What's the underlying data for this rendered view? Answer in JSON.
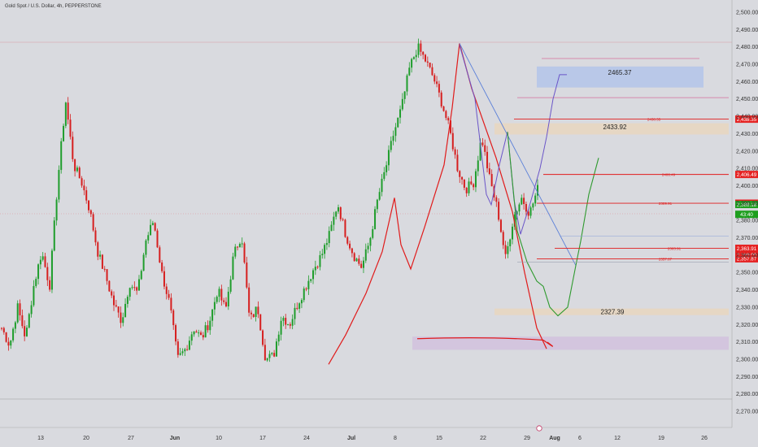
{
  "header": {
    "symbol_title": "Gold Spot / U.S. Dollar, 4h, PEPPERSTONE"
  },
  "colors": {
    "background": "#d9dadf",
    "up": "#1f9d2c",
    "down": "#d61f1f",
    "axis_text": "#333333",
    "price_tag_red": "#e52222",
    "price_tag_green": "#1e9e1e",
    "zone_blue": "#b9c8e8",
    "zone_orange": "#e8d6bf",
    "zone_purple": "#d2c2de",
    "pink_line": "#d7a4be",
    "line_red": "#e01b1b",
    "line_blue": "#5a7fd8",
    "line_purple": "#6a55c8",
    "line_green": "#2f9a2f"
  },
  "chart_data": {
    "type": "candlestick",
    "symbol": "Gold Spot / U.S. Dollar",
    "interval": "4h",
    "source": "PEPPERSTONE",
    "x_tick_labels": [
      "13",
      "20",
      "27",
      "Jun",
      "10",
      "17",
      "24",
      "Jul",
      "8",
      "15",
      "22",
      "29",
      "Aug",
      "6",
      "12",
      "19",
      "26"
    ],
    "y_tick_labels": [
      "2,500.00",
      "2,490.00",
      "2,480.00",
      "2,470.00",
      "2,460.00",
      "2,450.00",
      "2,440.00",
      "2,430.00",
      "2,420.00",
      "2,410.00",
      "2,400.00",
      "2,390.00",
      "2,380.00",
      "2,370.00",
      "2,360.00",
      "2,350.00",
      "2,340.00",
      "2,330.00",
      "2,320.00",
      "2,310.00",
      "2,300.00",
      "2,290.00",
      "2,280.00",
      "2,270.00"
    ],
    "ylim": [
      2265,
      2505
    ],
    "anchor_prices": [
      2318,
      2308,
      2330,
      2312,
      2342,
      2362,
      2342,
      2402,
      2449,
      2412,
      2402,
      2386,
      2362,
      2348,
      2332,
      2322,
      2344,
      2338,
      2368,
      2380,
      2350,
      2332,
      2300,
      2306,
      2318,
      2312,
      2322,
      2340,
      2328,
      2360,
      2372,
      2322,
      2330,
      2300,
      2302,
      2325,
      2320,
      2332,
      2342,
      2352,
      2360,
      2372,
      2390,
      2372,
      2360,
      2353,
      2368,
      2392,
      2410,
      2430,
      2445,
      2468,
      2480,
      2472,
      2462,
      2448,
      2432,
      2410,
      2398,
      2402,
      2428,
      2404,
      2386,
      2358,
      2382,
      2393,
      2384,
      2398
    ],
    "price_levels": [
      {
        "label": "2465.37",
        "value": 2465.37
      },
      {
        "label": "2433.92",
        "value": 2433.92
      },
      {
        "label": "2327.39",
        "value": 2327.39
      }
    ],
    "horizontal_lines": [
      {
        "label": "2438.35",
        "value": 2438.35
      },
      {
        "label": "2406.49",
        "value": 2406.49
      },
      {
        "label": "2389.91",
        "value": 2389.91
      },
      {
        "label": "2363.91",
        "value": 2363.91
      },
      {
        "label": "2357.87",
        "value": 2357.87
      }
    ],
    "price_tags": [
      {
        "label": "2,438.35",
        "value": 2438.35
      },
      {
        "label": "2,406.49",
        "value": 2406.49
      },
      {
        "label": "2,389.91",
        "value": 2389.91
      },
      {
        "label": "2,389.18",
        "value": 2389.18
      },
      {
        "label": "43:40",
        "value": 2383.5
      },
      {
        "label": "2,363.91",
        "value": 2363.91
      },
      {
        "label": "2,360.00",
        "value": 2360.0
      },
      {
        "label": "2,357.87",
        "value": 2357.87
      }
    ]
  }
}
